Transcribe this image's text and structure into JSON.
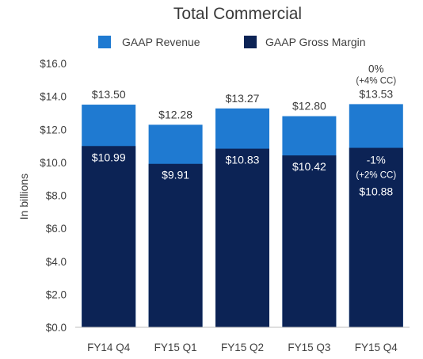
{
  "chart_data": {
    "type": "bar",
    "stacked": false,
    "overlay": true,
    "title": "Total Commercial",
    "ylabel": "In billions",
    "ylim": [
      0,
      16
    ],
    "yticks": [
      "$0.0",
      "$2.0",
      "$4.0",
      "$6.0",
      "$8.0",
      "$10.0",
      "$12.0",
      "$14.0",
      "$16.0"
    ],
    "categories": [
      "FY14 Q4",
      "FY15 Q1",
      "FY15 Q2",
      "FY15 Q3",
      "FY15 Q4"
    ],
    "legend": {
      "placement": "top"
    },
    "series": [
      {
        "name": "GAAP Revenue",
        "color": "#1f7ad1",
        "values": [
          13.5,
          12.28,
          13.27,
          12.8,
          13.53
        ],
        "labels": [
          "$13.50",
          "$12.28",
          "$13.27",
          "$12.80",
          "$13.53"
        ]
      },
      {
        "name": "GAAP Gross Margin",
        "color": "#0c2355",
        "values": [
          10.99,
          9.91,
          10.83,
          10.42,
          10.88
        ],
        "labels": [
          "$10.99",
          "$9.91",
          "$10.83",
          "$10.42",
          "$10.88"
        ]
      }
    ],
    "annotations": {
      "revenue_growth": "0%",
      "revenue_growth_cc": "(+4% CC)",
      "margin_growth": "-1%",
      "margin_growth_cc": "(+2% CC)"
    }
  }
}
